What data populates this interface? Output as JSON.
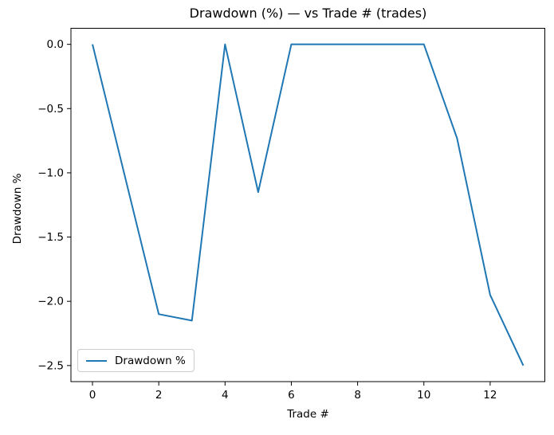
{
  "figure": {
    "title": "Drawdown (%) — vs Trade # (trades)"
  },
  "legend": {
    "label": "Drawdown %",
    "position": "lower left"
  },
  "colors": {
    "line": "#1f77b4",
    "axis": "#000000",
    "text": "#000000",
    "legend_border": "#cccccc",
    "background": "#ffffff"
  },
  "chart_data": {
    "type": "line",
    "title": "Drawdown (%) — vs Trade # (trades)",
    "xlabel": "Trade #",
    "ylabel": "Drawdown %",
    "grid": false,
    "legend_position": "lower left",
    "x": [
      0,
      1,
      2,
      3,
      4,
      5,
      6,
      7,
      8,
      9,
      10,
      11,
      12,
      13
    ],
    "series": [
      {
        "name": "Drawdown %",
        "color": "#1f77b4",
        "values": [
          0.0,
          -1.05,
          -2.1,
          -2.15,
          0.0,
          -1.15,
          0.0,
          0.0,
          0.0,
          0.0,
          0.0,
          -0.73,
          -1.95,
          -2.5
        ]
      }
    ],
    "xlim": [
      -0.65,
      13.65
    ],
    "ylim": [
      -2.625,
      0.125
    ],
    "x_ticks": [
      0,
      2,
      4,
      6,
      8,
      10,
      12
    ],
    "x_tick_labels": [
      "0",
      "2",
      "4",
      "6",
      "8",
      "10",
      "12"
    ],
    "y_ticks": [
      0,
      -0.5,
      -1,
      -1.5,
      -2,
      -2.5
    ],
    "y_tick_labels": [
      "0.0",
      "−0.5",
      "−1.0",
      "−1.5",
      "−2.0",
      "−2.5"
    ]
  }
}
